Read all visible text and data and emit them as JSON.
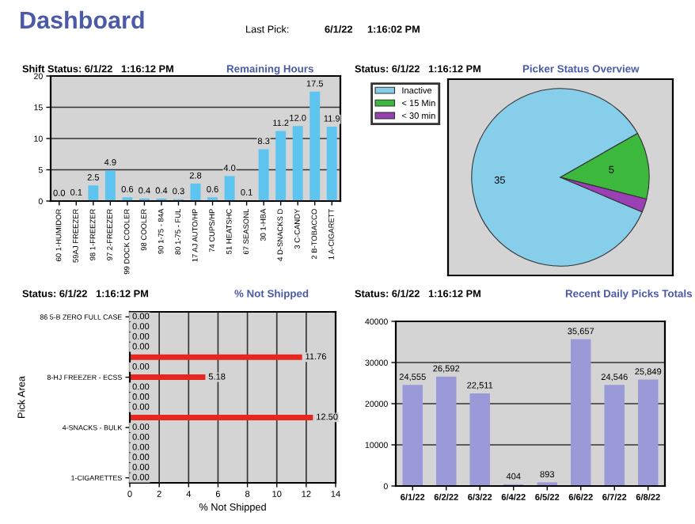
{
  "chart_data": [
    {
      "type": "other",
      "title": "Dashboard",
      "annotations": [
        "Last Pick:",
        "6/1/22",
        "1:16:02 PM"
      ]
    },
    {
      "type": "bar",
      "title": "Remaining Hours",
      "annotations": [
        "Shift Status: 6/1/22   1:16:12 PM"
      ],
      "categories": [
        "60 1-HUMIDOR",
        "59AJ FREEZER",
        "98 1-FREEZER",
        "97 2-FREEZER",
        "99 DOCK COOLER",
        "98 COOLER",
        "90 1-75 - 84A",
        "80 1-75 - FUL",
        "17 AJ AUTO/HP",
        "74 CUPS/HP",
        "51 HEATSHC",
        "67 SEASONL",
        "30 1-HBA",
        "4 D-SNACKS D",
        "3 C-CANDY",
        "2 B-TOBACCO",
        "1 A-CIGARETT"
      ],
      "values": [
        0.0,
        0.1,
        2.5,
        4.9,
        0.6,
        0.4,
        0.4,
        0.3,
        2.8,
        0.6,
        4.0,
        0.1,
        8.3,
        11.2,
        12.0,
        17.5,
        11.9
      ],
      "value_labels": [
        "0.0",
        "0.1",
        "2.5",
        "4.9",
        "0.6",
        "0.4",
        "0.4",
        "0.3",
        "2.8",
        "0.6",
        "4.0",
        "0.1",
        "8.3",
        "11.2",
        "12.0",
        "17.5",
        "11.9"
      ],
      "color": "#5cc4ee",
      "ylim": [
        0,
        20
      ],
      "yticks": [
        0,
        5,
        10,
        15,
        20
      ],
      "grid": "y"
    },
    {
      "type": "pie",
      "title": "Picker Status Overview",
      "annotations": [
        "Status: 6/1/22   1:16:12 PM"
      ],
      "categories": [
        "Inactive",
        "< 15 Min",
        "< 30 min"
      ],
      "values": [
        35,
        5,
        1
      ],
      "value_labels": [
        "35",
        "5",
        null
      ],
      "colors": [
        "#87ceeb",
        "#3cb83c",
        "#9b3fb5"
      ],
      "legend": "top left"
    },
    {
      "type": "bar",
      "orientation": "horizontal",
      "title": "% Not Shipped",
      "annotations": [
        "Status: 6/1/22   1:16:12 PM"
      ],
      "xlabel": "% Not Shipped",
      "ylabel": "Pick Area",
      "categories": [
        "86 5-B ZERO FULL CASE",
        null,
        null,
        null,
        null,
        null,
        "8-HJ FREEZER - ECSS",
        null,
        null,
        null,
        null,
        "4-SNACKS - BULK",
        null,
        null,
        null,
        null,
        "1-CIGARETTES"
      ],
      "values": [
        0,
        0,
        0,
        0,
        11.76,
        0,
        5.18,
        0,
        0,
        0,
        12.5,
        0,
        0,
        0,
        0,
        0,
        0
      ],
      "value_labels": [
        "0.00",
        "0.00",
        "0.00",
        "0.00",
        "11.76",
        "0.00",
        "5.18",
        "0.00",
        "0.00",
        "0.00",
        "12.50",
        "0.00",
        "0.00",
        "0.00",
        "0.00",
        "0.00",
        "0.00"
      ],
      "color": "#e82620",
      "xlim": [
        0,
        14
      ],
      "xticks": [
        0,
        2,
        4,
        6,
        8,
        10,
        12,
        14
      ],
      "grid": "x"
    },
    {
      "type": "bar",
      "title": "Recent Daily Picks Totals",
      "annotations": [
        "Status: 6/1/22   1:16:12 PM"
      ],
      "categories": [
        "6/1/22",
        "6/2/22",
        "6/3/22",
        "6/4/22",
        "6/5/22",
        "6/6/22",
        "6/7/22",
        "6/8/22"
      ],
      "values": [
        24555,
        26592,
        22511,
        404,
        893,
        35657,
        24546,
        25849
      ],
      "value_labels": [
        "24,555",
        "26,592",
        "22,511",
        "404",
        "893",
        "35,657",
        "24,546",
        "25,849"
      ],
      "color": "#9a9ad8",
      "ylim": [
        0,
        40000
      ],
      "yticks": [
        0,
        10000,
        20000,
        30000,
        40000
      ],
      "grid": "y"
    }
  ]
}
